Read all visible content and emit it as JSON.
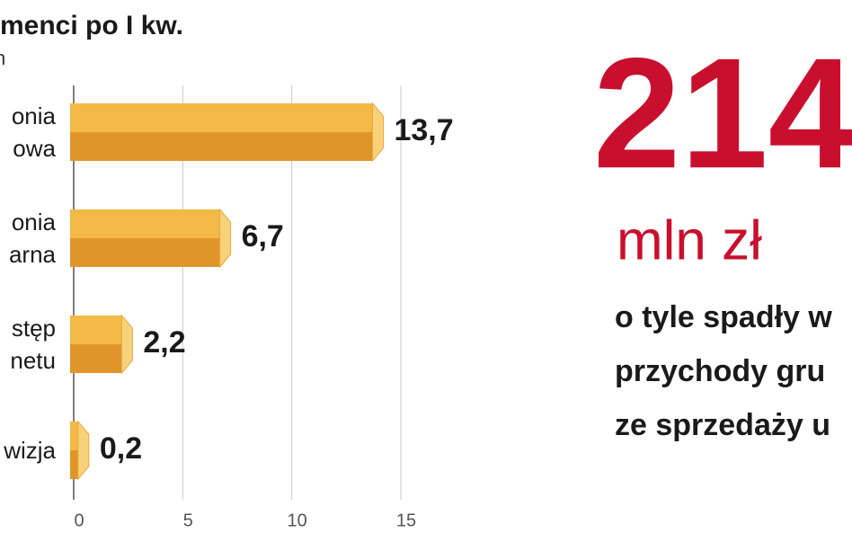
{
  "chart_data": {
    "type": "bar",
    "orientation": "horizontal",
    "title": "menci po I kw.",
    "subtitle": "n",
    "categories": [
      "onia\nowa",
      "onia\narna",
      "stęp\nnetu",
      "wizja"
    ],
    "values": [
      13.7,
      6.7,
      2.2,
      0.2
    ],
    "value_labels": [
      "13,7",
      "6,7",
      "2,2",
      "0,2"
    ],
    "color": "#f2b946",
    "shade_color": "#e0952a",
    "cap_color": "#f7d27a",
    "xlim": [
      0,
      15
    ],
    "xticks": [
      0,
      5,
      10,
      15
    ],
    "grid": true
  },
  "callout": {
    "number": "214",
    "unit": "mln zł",
    "lines": [
      "o tyle spadły w",
      "przychody gru",
      "ze sprzedaży u"
    ]
  }
}
